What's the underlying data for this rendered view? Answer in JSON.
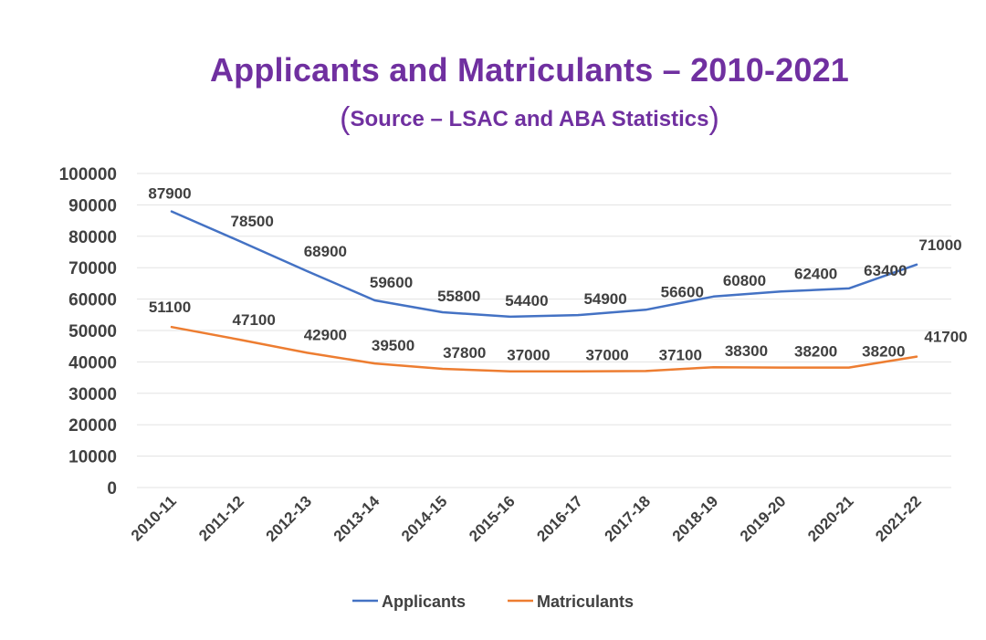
{
  "chart_data": {
    "type": "line",
    "title": "Applicants and Matriculants – 2010-2021",
    "subtitle": "Source – LSAC and ABA Statistics",
    "categories": [
      "2010-11",
      "2011-12",
      "2012-13",
      "2013-14",
      "2014-15",
      "2015-16",
      "2016-17",
      "2017-18",
      "2018-19",
      "2019-20",
      "2020-21",
      "2021-22"
    ],
    "series": [
      {
        "name": "Applicants",
        "color": "#4472c4",
        "values": [
          87900,
          78500,
          68900,
          59600,
          55800,
          54400,
          54900,
          56600,
          60800,
          62400,
          63400,
          71000
        ]
      },
      {
        "name": "Matriculants",
        "color": "#ed7d31",
        "values": [
          51100,
          47100,
          42900,
          39500,
          37800,
          37000,
          37000,
          37100,
          38300,
          38200,
          38200,
          41700
        ]
      }
    ],
    "yticks": [
      100000,
      90000,
      80000,
      70000,
      60000,
      50000,
      40000,
      30000,
      20000,
      10000,
      0
    ],
    "ylim": [
      0,
      100000
    ],
    "grid": true,
    "legend": "bottom",
    "xlabel": "",
    "ylabel": ""
  }
}
